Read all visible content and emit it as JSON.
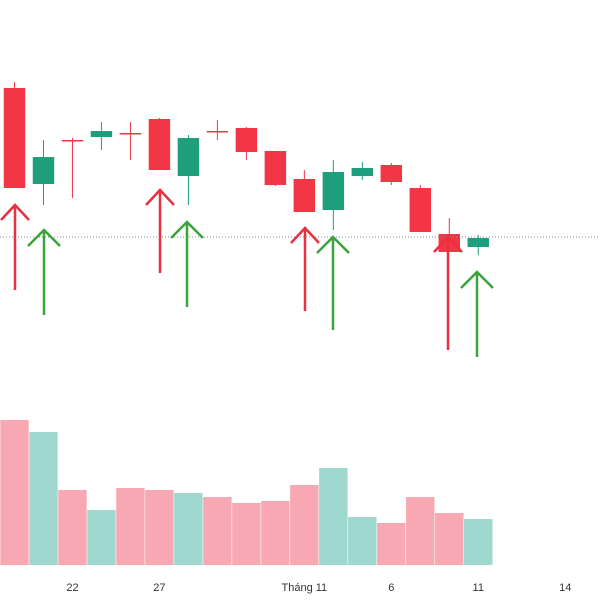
{
  "chart_data": {
    "type": "candlestick",
    "x": [
      0,
      1,
      2,
      3,
      4,
      5,
      6,
      7,
      8,
      9,
      10,
      11,
      12,
      13,
      14,
      15,
      16
    ],
    "xlim": [
      -0.5,
      20.2
    ],
    "xticks": [
      {
        "value": 2,
        "label": "22"
      },
      {
        "value": 5,
        "label": "27"
      },
      {
        "value": 10,
        "label": "Tháng 11"
      },
      {
        "value": 13,
        "label": "6"
      },
      {
        "value": 16,
        "label": "11"
      },
      {
        "value": 19,
        "label": "14"
      }
    ],
    "open": [
      212,
      116,
      160,
      163,
      167,
      181,
      124,
      169,
      172,
      149,
      121,
      90,
      124,
      135,
      112,
      66,
      53
    ],
    "high": [
      218,
      160,
      162,
      178,
      178,
      182,
      165,
      180,
      173,
      149,
      130,
      140,
      138,
      137,
      115,
      82,
      65
    ],
    "low": [
      112,
      95,
      102,
      150,
      140,
      130,
      95,
      160,
      140,
      114,
      88,
      70,
      120,
      115,
      68,
      48,
      45
    ],
    "close": [
      112,
      143,
      159,
      169,
      166,
      130,
      162,
      168,
      148,
      115,
      88,
      128,
      132,
      118,
      68,
      48,
      62
    ],
    "ylim": [
      0,
      300
    ],
    "up_color": "#1f9e7e",
    "down_color": "#f23645",
    "volume": [
      145,
      133,
      75,
      55,
      77,
      75,
      72,
      68,
      62,
      64,
      80,
      97,
      48,
      42,
      68,
      52,
      46
    ],
    "volume_lim": [
      0,
      165
    ],
    "volume_up_color": "#9fd8ce",
    "volume_down_color": "#f7a8b2"
  }
}
